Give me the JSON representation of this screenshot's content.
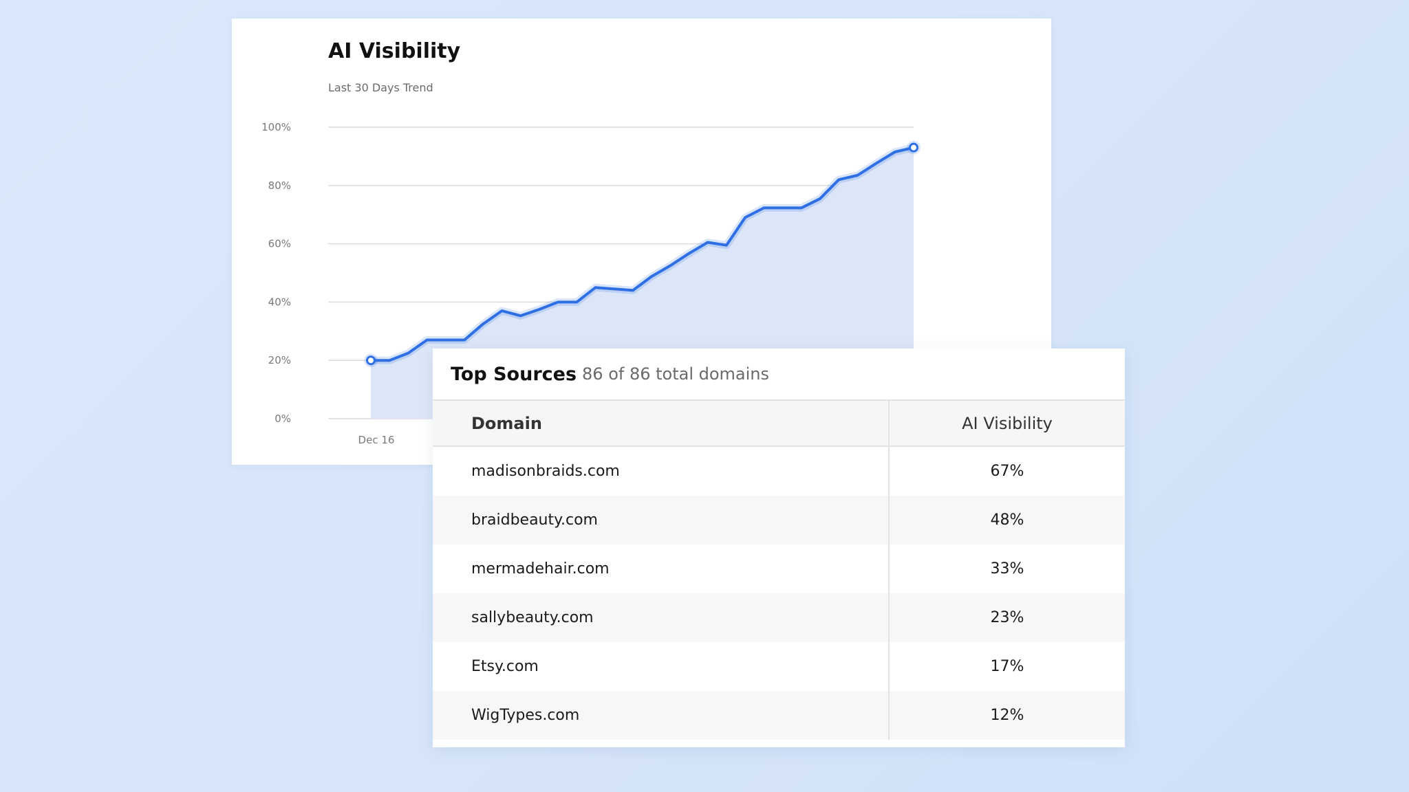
{
  "chart_data": {
    "type": "area",
    "title": "AI Visibility",
    "subtitle": "Last 30 Days Trend",
    "x_tick_labels": [
      "Dec 16"
    ],
    "y_tick_labels": [
      "100%",
      "80%",
      "60%",
      "40%",
      "20%",
      "0%"
    ],
    "ylim": [
      0,
      100
    ],
    "y_ticks": [
      100,
      80,
      60,
      40,
      20,
      0
    ],
    "grid": true,
    "series": [
      {
        "values": [
          20,
          20,
          22.5,
          27,
          27,
          27,
          32.5,
          37,
          35.3,
          37.5,
          40,
          40,
          45,
          44.5,
          44,
          48.8,
          52.5,
          56.7,
          60.5,
          59.5,
          69,
          72.3,
          72.3,
          72.3,
          75.5,
          82,
          83.5,
          87.6,
          91.5,
          93
        ]
      }
    ],
    "line_color": "#2f6fe4",
    "fill_color": "#dce6f8"
  },
  "table": {
    "title": "Top Sources",
    "count_text": "86 of 86 total domains",
    "columns": [
      "Domain",
      "AI Visibility"
    ],
    "rows": [
      {
        "domain": "madisonbraids.com",
        "visibility": "67%"
      },
      {
        "domain": "braidbeauty.com",
        "visibility": "48%"
      },
      {
        "domain": "mermadehair.com",
        "visibility": "33%"
      },
      {
        "domain": "sallybeauty.com",
        "visibility": "23%"
      },
      {
        "domain": "Etsy.com",
        "visibility": "17%"
      },
      {
        "domain": "WigTypes.com",
        "visibility": "12%"
      }
    ]
  }
}
